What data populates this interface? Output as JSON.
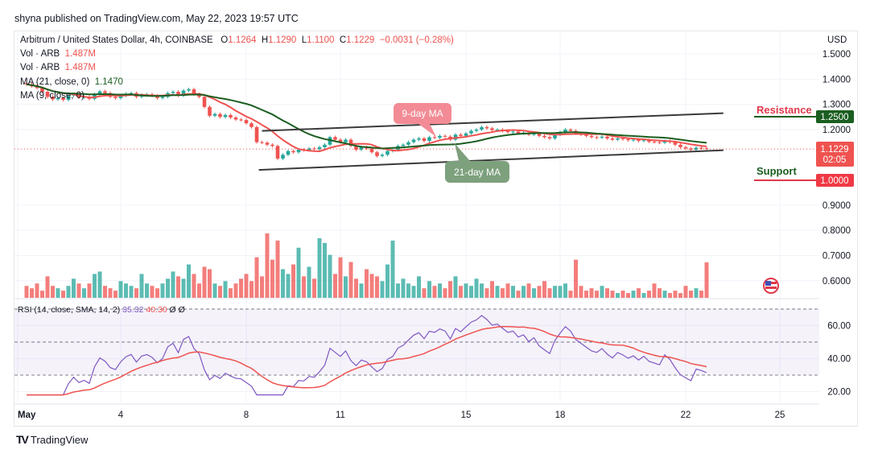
{
  "published": "shyna published on TradingView.com, May 22, 2023 19:57 UTC",
  "symbol": {
    "title": "Arbitrum / United States Dollar, 4h, COINBASE",
    "open_label": "O",
    "open": "1.1264",
    "high_label": "H",
    "high": "1.1290",
    "low_label": "L",
    "low": "1.1100",
    "close_label": "C",
    "close": "1.1229",
    "change": "−0.0031 (−0.28%)"
  },
  "indicators": {
    "vol1_label": "Vol · ARB",
    "vol1_value": "1.487M",
    "vol2_label": "Vol · ARB",
    "vol2_value": "1.487M",
    "ma21_label": "MA (21, close, 0)",
    "ma21_value": "1.1470",
    "ma9_label": "MA (9, close, 0)",
    "rsi_label": "RSI (14, close, SMA, 14, 2)",
    "rsi_value": "35.32",
    "rsi_sma_value": "40.30",
    "rsi_extra1": "Ø",
    "rsi_extra2": "Ø"
  },
  "axis": {
    "currency": "USD",
    "last_price": "1.1229",
    "countdown": "02:05",
    "resistance_price": "1.2500",
    "support_price": "1.0000"
  },
  "annotations": {
    "ma9": "9-day MA",
    "ma21": "21-day MA",
    "resistance": "Resistance",
    "support": "Support"
  },
  "branding": "TradingView",
  "colors": {
    "up": "#26a69a",
    "down": "#ef5350",
    "ma9": "#ef5350",
    "ma21": "#1b5e20",
    "rsi": "#7e57c2",
    "rsi_sma": "#ef5350",
    "resistance": "#1b5e20",
    "support": "#ef3945"
  },
  "chart_data": {
    "type": "candlestick",
    "interval": "4h",
    "start": "2023-05-01",
    "price_ticks": [
      "1.5000",
      "1.4000",
      "1.3000",
      "1.2000",
      "0.9000",
      "0.8000",
      "0.7000",
      "0.6000"
    ],
    "price_range": [
      0.55,
      1.55
    ],
    "x_ticks": [
      {
        "day": 1,
        "label": "May"
      },
      {
        "day": 4,
        "label": "4"
      },
      {
        "day": 8,
        "label": "8"
      },
      {
        "day": 11,
        "label": "11"
      },
      {
        "day": 15,
        "label": "15"
      },
      {
        "day": 18,
        "label": "18"
      },
      {
        "day": 22,
        "label": "22"
      },
      {
        "day": 25,
        "label": "25"
      }
    ],
    "closes": [
      1.38,
      1.372,
      1.365,
      1.35,
      1.33,
      1.32,
      1.325,
      1.318,
      1.335,
      1.34,
      1.328,
      1.33,
      1.322,
      1.34,
      1.352,
      1.345,
      1.33,
      1.325,
      1.335,
      1.342,
      1.345,
      1.33,
      1.338,
      1.34,
      1.335,
      1.325,
      1.33,
      1.345,
      1.35,
      1.335,
      1.355,
      1.36,
      1.34,
      1.33,
      1.29,
      1.255,
      1.262,
      1.25,
      1.258,
      1.248,
      1.24,
      1.238,
      1.225,
      1.21,
      1.15,
      1.148,
      1.14,
      1.135,
      1.085,
      1.1,
      1.115,
      1.11,
      1.12,
      1.118,
      1.125,
      1.122,
      1.13,
      1.14,
      1.17,
      1.16,
      1.15,
      1.16,
      1.135,
      1.12,
      1.13,
      1.125,
      1.11,
      1.095,
      1.1,
      1.115,
      1.12,
      1.135,
      1.14,
      1.15,
      1.16,
      1.165,
      1.155,
      1.17,
      1.168,
      1.175,
      1.172,
      1.16,
      1.18,
      1.175,
      1.185,
      1.195,
      1.2,
      1.21,
      1.205,
      1.198,
      1.2,
      1.195,
      1.19,
      1.192,
      1.185,
      1.188,
      1.18,
      1.185,
      1.175,
      1.17,
      1.165,
      1.18,
      1.19,
      1.2,
      1.195,
      1.185,
      1.18,
      1.175,
      1.17,
      1.168,
      1.172,
      1.165,
      1.16,
      1.165,
      1.162,
      1.158,
      1.16,
      1.155,
      1.158,
      1.152,
      1.15,
      1.148,
      1.155,
      1.15,
      1.14,
      1.13,
      1.125,
      1.12,
      1.128,
      1.126,
      1.1229
    ],
    "volumes_m": [
      0.5,
      0.4,
      0.6,
      0.3,
      0.9,
      0.5,
      0.4,
      0.3,
      0.5,
      0.8,
      0.6,
      0.4,
      0.6,
      1.0,
      1.1,
      0.5,
      0.4,
      0.3,
      0.7,
      0.6,
      0.5,
      0.4,
      1.0,
      0.6,
      0.5,
      0.4,
      0.6,
      0.8,
      1.1,
      0.9,
      0.8,
      1.4,
      1.0,
      0.6,
      1.3,
      1.2,
      0.6,
      0.5,
      0.7,
      0.4,
      0.6,
      0.8,
      1.0,
      0.7,
      1.7,
      0.9,
      2.7,
      1.6,
      2.4,
      1.2,
      1.0,
      1.4,
      2.1,
      0.9,
      1.3,
      0.8,
      2.5,
      2.3,
      1.8,
      1.0,
      1.7,
      0.9,
      1.5,
      0.8,
      0.6,
      1.2,
      1.0,
      0.9,
      0.7,
      1.4,
      2.4,
      0.6,
      0.8,
      0.6,
      0.5,
      0.9,
      0.4,
      0.7,
      0.5,
      0.6,
      0.4,
      0.7,
      0.9,
      0.5,
      0.6,
      0.5,
      0.8,
      0.6,
      0.4,
      0.7,
      0.5,
      0.4,
      0.6,
      0.5,
      0.3,
      0.5,
      0.6,
      0.4,
      0.5,
      0.7,
      0.4,
      0.5,
      0.5,
      0.6,
      0.3,
      1.6,
      0.5,
      0.3,
      0.4,
      0.3,
      0.5,
      0.4,
      0.3,
      0.2,
      0.3,
      0.2,
      0.3,
      0.4,
      0.2,
      0.3,
      0.6,
      0.4,
      0.3,
      0.2,
      0.3,
      0.2,
      0.5,
      0.3,
      0.4,
      0.3,
      1.487
    ],
    "rsi_ticks": [
      "60.00",
      "40.00",
      "20.00"
    ],
    "rsi_bands": [
      70,
      50,
      30
    ],
    "trendlines": [
      {
        "name": "channel-upper",
        "from": {
          "day": 8.5,
          "price": 1.195
        },
        "to": {
          "day": 23.2,
          "price": 1.265
        }
      },
      {
        "name": "channel-lower",
        "from": {
          "day": 8.4,
          "price": 1.04
        },
        "to": {
          "day": 23.2,
          "price": 1.118
        }
      }
    ],
    "levels": [
      {
        "label": "Resistance",
        "price": 1.25
      },
      {
        "label": "Support",
        "price": 1.0
      }
    ]
  }
}
